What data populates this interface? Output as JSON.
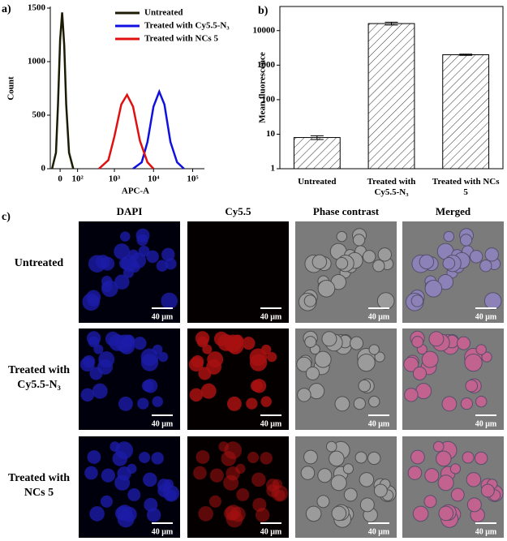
{
  "panel_labels": [
    "a)",
    "b)",
    "c)"
  ],
  "chart_data": [
    {
      "type": "line",
      "x_label": "APC-A",
      "y_label": "Count",
      "xscale": "biexponential",
      "xlim": [
        -50,
        200000
      ],
      "ylim": [
        0,
        1500
      ],
      "xticks": [
        0,
        {
          "value": 100,
          "label": "10²"
        },
        {
          "value": 1000,
          "label": "10³"
        },
        {
          "value": 10000,
          "label": "10⁴"
        },
        {
          "value": 100000,
          "label": "10⁵"
        }
      ],
      "yticks": [
        0,
        500,
        1000,
        1500
      ],
      "legend": "upper right",
      "series": [
        {
          "name": "Untreated",
          "color": "#1c1c05",
          "x": [
            -40,
            -20,
            -10,
            0,
            10,
            20,
            30,
            45,
            70
          ],
          "values": [
            0,
            150,
            600,
            1200,
            1460,
            1150,
            600,
            150,
            0
          ]
        },
        {
          "name": "Treated with Cy5.5-N₃",
          "color": "#1010e0",
          "x": [
            3000,
            5000,
            7000,
            10000,
            14000,
            19000,
            27000,
            40000,
            60000
          ],
          "values": [
            0,
            60,
            250,
            580,
            720,
            600,
            250,
            60,
            0
          ]
        },
        {
          "name": "Treated with NCs 5",
          "color": "#e01010",
          "x": [
            400,
            700,
            1000,
            1500,
            2100,
            3000,
            4500,
            7000,
            10000
          ],
          "values": [
            0,
            80,
            300,
            600,
            690,
            580,
            260,
            60,
            0
          ]
        }
      ]
    },
    {
      "type": "bar",
      "y_label": "Mean fluorescence",
      "yscale": "log",
      "categories": [
        "Untreated",
        "Treated with Cy5.5-N₃",
        "Treated with NCs 5"
      ],
      "values": [
        8,
        16000,
        2000
      ],
      "errors": [
        1,
        1500,
        80
      ],
      "color": "#000000",
      "ylim": [
        1,
        50000
      ],
      "yticks": [
        1,
        10,
        100,
        1000,
        10000
      ]
    }
  ],
  "image_grid": {
    "columns": [
      "DAPI",
      "Cy5.5",
      "Phase contrast",
      "Merged"
    ],
    "rows": [
      "Untreated",
      "Treated with Cy5.5-N₃",
      "Treated with NCs 5"
    ],
    "scale_bar": "40 μm"
  }
}
